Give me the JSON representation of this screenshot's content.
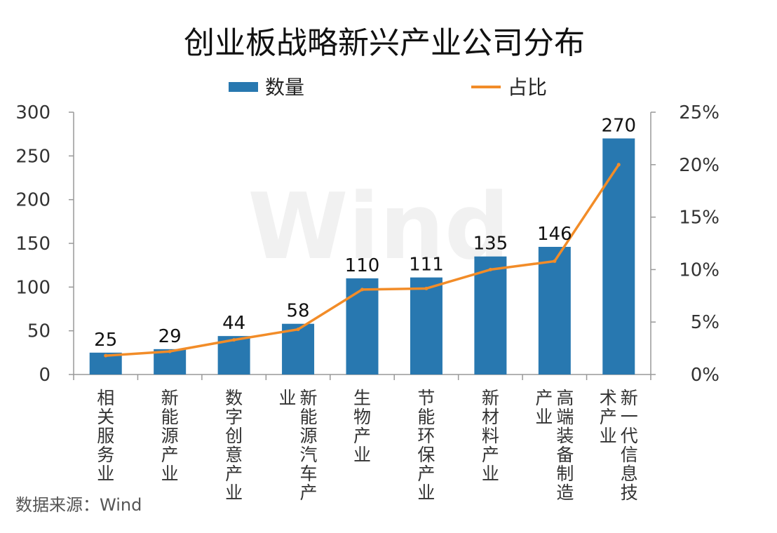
{
  "chart_data": {
    "type": "bar",
    "title": "创业板战略新兴产业公司分布",
    "categories": [
      {
        "lines": [
          "相关服务业"
        ]
      },
      {
        "lines": [
          "新能源产业"
        ]
      },
      {
        "lines": [
          "数字创意产业"
        ]
      },
      {
        "lines": [
          "新能源汽车产",
          "业"
        ]
      },
      {
        "lines": [
          "生物产业"
        ]
      },
      {
        "lines": [
          "节能环保产业"
        ]
      },
      {
        "lines": [
          "新材料产业"
        ]
      },
      {
        "lines": [
          "高端装备制造",
          "产业"
        ]
      },
      {
        "lines": [
          "新一代信息技",
          "术产业"
        ]
      }
    ],
    "series": [
      {
        "name": "数量",
        "type": "bar",
        "axis": "left",
        "color": "#2878b0",
        "values": [
          25,
          29,
          44,
          58,
          110,
          111,
          135,
          146,
          270
        ]
      },
      {
        "name": "占比",
        "type": "line",
        "axis": "right",
        "color": "#f28c28",
        "values": [
          1.8,
          2.2,
          3.3,
          4.3,
          8.1,
          8.2,
          10.0,
          10.8,
          20.0
        ]
      }
    ],
    "data_labels": [
      "25",
      "29",
      "44",
      "58",
      "110",
      "111",
      "135",
      "146",
      "270"
    ],
    "y_left": {
      "min": 0,
      "max": 300,
      "ticks": [
        "0",
        "50",
        "100",
        "150",
        "200",
        "250",
        "300"
      ]
    },
    "y_right": {
      "min": 0,
      "max": 25,
      "ticks": [
        "0%",
        "5%",
        "10%",
        "15%",
        "20%",
        "25%"
      ]
    },
    "legend_position": "top",
    "grid": false
  },
  "watermark": "Wind",
  "source": "数据来源：Wind"
}
